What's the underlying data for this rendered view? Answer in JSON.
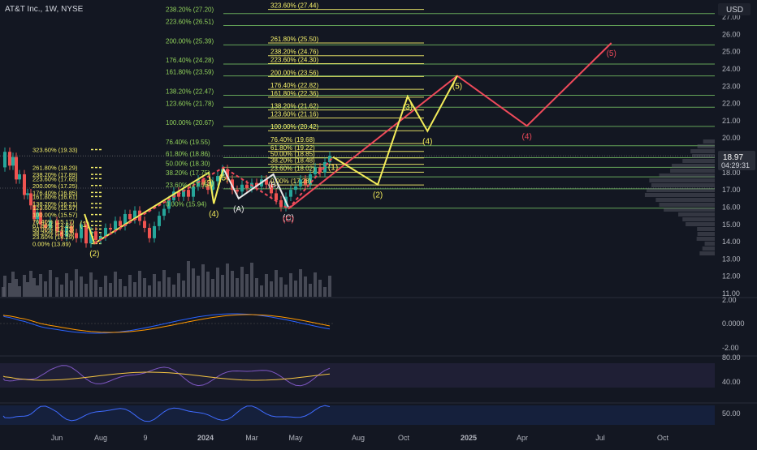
{
  "chart_data": {
    "type": "line",
    "title": "AT&T Inc., 1W, NYSE",
    "currency": "USD",
    "colors": {
      "bg": "#131722",
      "axis_text": "#b2b5be",
      "grid_fib": "#7fd36a",
      "fib_label_green": "#8fcf5a",
      "fib_label_yellow": "#f5f06a",
      "wave_yellow": "#f4ec5a",
      "wave_red": "#ef4a5a",
      "wave_white": "#e8e8e8",
      "candle_up": "#26a69a",
      "candle_down": "#ef5350",
      "volume": "#5d606b",
      "price_badge": "#2a2e39"
    },
    "y_axis": {
      "ticks": [
        "27.00",
        "26.00",
        "25.00",
        "24.00",
        "23.00",
        "22.00",
        "21.00",
        "20.00",
        "19.00",
        "18.00",
        "17.00",
        "16.00",
        "15.00",
        "14.00",
        "13.00",
        "12.00",
        "11.00"
      ],
      "range": [
        11,
        27.6
      ]
    },
    "x_axis": {
      "ticks": [
        "Jun",
        "Aug",
        "9",
        "2024",
        "Mar",
        "May",
        "Aug",
        "Oct",
        "2025",
        "Apr",
        "Jul",
        "Oct"
      ]
    },
    "current_price": "18.97",
    "countdown": "04:29:31",
    "fib_left": [
      {
        "label": "238.20% (27.20)",
        "price": 27.2
      },
      {
        "label": "223.60% (26.51)",
        "price": 26.51
      },
      {
        "label": "200.00% (25.39)",
        "price": 25.39
      },
      {
        "label": "176.40% (24.28)",
        "price": 24.28
      },
      {
        "label": "161.80% (23.59)",
        "price": 23.59
      },
      {
        "label": "138.20% (22.47)",
        "price": 22.47
      },
      {
        "label": "123.60% (21.78)",
        "price": 21.78
      },
      {
        "label": "100.00% (20.67)",
        "price": 20.67
      },
      {
        "label": "76.40% (19.55)",
        "price": 19.55
      },
      {
        "label": "61.80% (18.86)",
        "price": 18.86
      },
      {
        "label": "50.00% (18.30)",
        "price": 18.3
      },
      {
        "label": "38.20% (17.75)",
        "price": 17.75
      },
      {
        "label": "23.60% (17.06)",
        "price": 17.06
      },
      {
        "label": "0.00% (15.94)",
        "price": 15.94
      }
    ],
    "fib_right": [
      {
        "label": "323.60% (27.44)",
        "price": 27.44
      },
      {
        "label": "261.80% (25.50)",
        "price": 25.5
      },
      {
        "label": "238.20% (24.76)",
        "price": 24.76
      },
      {
        "label": "223.60% (24.30)",
        "price": 24.3
      },
      {
        "label": "200.00% (23.56)",
        "price": 23.56
      },
      {
        "label": "176.40% (22.82)",
        "price": 22.82
      },
      {
        "label": "161.80% (22.36)",
        "price": 22.36
      },
      {
        "label": "138.20% (21.62)",
        "price": 21.62
      },
      {
        "label": "123.60% (21.16)",
        "price": 21.16
      },
      {
        "label": "100.00% (20.42)",
        "price": 20.42
      },
      {
        "label": "76.40% (19.68)",
        "price": 19.68
      },
      {
        "label": "61.80% (19.22)",
        "price": 19.22
      },
      {
        "label": "50.00% (18.85)",
        "price": 18.85
      },
      {
        "label": "38.20% (18.48)",
        "price": 18.48
      },
      {
        "label": "23.60% (18.02)",
        "price": 18.02
      },
      {
        "label": "0.00% (17.28)",
        "price": 17.28
      }
    ],
    "fib_small": [
      {
        "label": "323.60% (19.33)",
        "price": 19.33
      },
      {
        "label": "261.80% (18.29)",
        "price": 18.29
      },
      {
        "label": "238.20% (17.89)",
        "price": 17.89
      },
      {
        "label": "223.60% (17.65)",
        "price": 17.65
      },
      {
        "label": "200.00% (17.25)",
        "price": 17.25
      },
      {
        "label": "176.40% (16.85)",
        "price": 16.85
      },
      {
        "label": "161.80% (16.61)",
        "price": 16.61
      },
      {
        "label": "138.20% (16.21)",
        "price": 16.21
      },
      {
        "label": "123.60% (15.97)",
        "price": 15.97
      },
      {
        "label": "100.00% (15.57)",
        "price": 15.57
      },
      {
        "label": "76.40% (15.17)",
        "price": 15.17
      },
      {
        "label": "61.80% (14.93)",
        "price": 14.93
      },
      {
        "label": "50.00% (14.73)",
        "price": 14.73
      },
      {
        "label": "38.20% (14.53)",
        "price": 14.53
      },
      {
        "label": "23.60% (14.29)",
        "price": 14.29
      },
      {
        "label": "0.00% (13.89)",
        "price": 13.89
      }
    ],
    "waves": {
      "yellow_small": [
        {
          "date": "2023-07-10",
          "price": 15.6,
          "label": "(1)"
        },
        {
          "date": "2023-07-24",
          "price": 13.9,
          "label": "(2)"
        },
        {
          "date": "2024-01-01",
          "price": 18.0,
          "label": "(3)"
        },
        {
          "date": "2024-01-08",
          "price": 16.2,
          "label": "(4)"
        },
        {
          "date": "2024-01-22",
          "price": 18.3,
          "label": "(5)"
        }
      ],
      "white_abc": [
        {
          "date": "2024-01-22",
          "price": 18.2,
          "label": ""
        },
        {
          "date": "2024-02-12",
          "price": 16.5,
          "label": "(A)"
        },
        {
          "date": "2024-04-01",
          "price": 17.9,
          "label": "(B)"
        },
        {
          "date": "2024-04-22",
          "price": 16.0,
          "label": "(C)"
        }
      ],
      "red_main": [
        {
          "date": "2023-07-24",
          "price": 13.9,
          "label": ""
        },
        {
          "date": "2024-01-22",
          "price": 18.3,
          "label": ""
        },
        {
          "date": "2024-04-22",
          "price": 15.9,
          "label": "(C)"
        },
        {
          "date": "2024-06-24",
          "price": 18.9,
          "label": "(1)"
        }
      ],
      "red_projection": [
        {
          "date": "2024-04-22",
          "price": 15.9,
          "label": ""
        },
        {
          "date": "2024-12-16",
          "price": 23.6,
          "label": ""
        },
        {
          "date": "2025-03-24",
          "price": 20.7,
          "label": "(4)"
        },
        {
          "date": "2025-07-21",
          "price": 25.5,
          "label": "(5)"
        }
      ],
      "yellow_projection": [
        {
          "date": "2024-06-24",
          "price": 18.9,
          "label": "(1)"
        },
        {
          "date": "2024-08-26",
          "price": 17.3,
          "label": "(2)"
        },
        {
          "date": "2024-10-07",
          "price": 22.4,
          "label": "(3)"
        },
        {
          "date": "2024-11-04",
          "price": 20.4,
          "label": "(4)"
        },
        {
          "date": "2024-12-16",
          "price": 23.6,
          "label": "(5)"
        }
      ]
    },
    "macd": {
      "ticks": [
        "2.00",
        "0.0000",
        "-2.00"
      ]
    },
    "rsi": {
      "ticks": [
        "80.00",
        "40.00"
      ]
    },
    "osc": {
      "ticks": [
        "50.00"
      ]
    }
  }
}
